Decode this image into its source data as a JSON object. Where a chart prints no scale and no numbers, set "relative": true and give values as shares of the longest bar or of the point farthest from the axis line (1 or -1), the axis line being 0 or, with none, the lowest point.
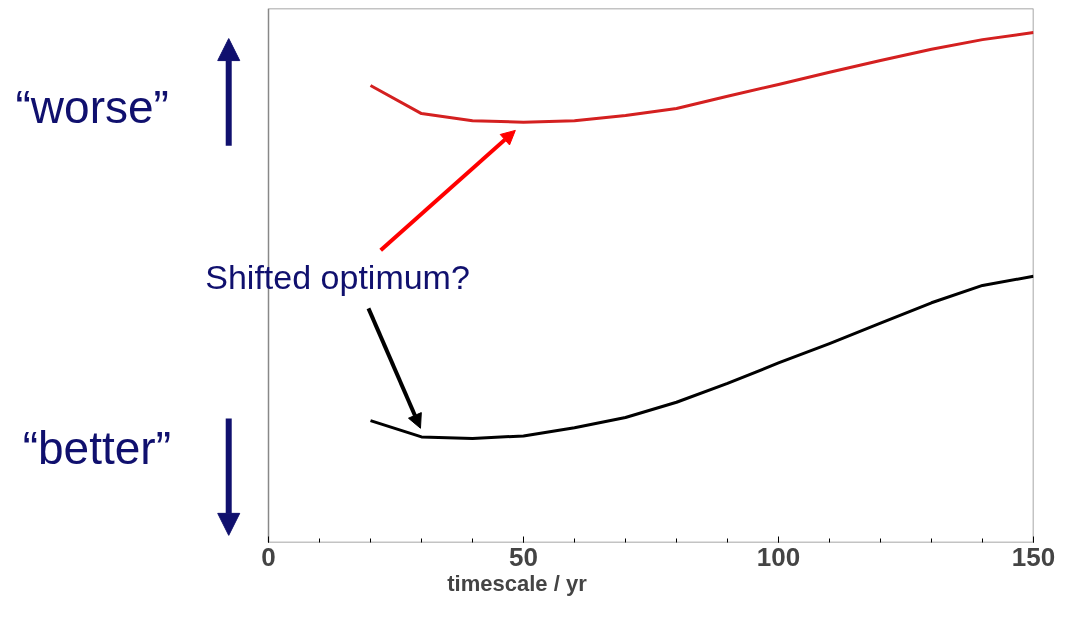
{
  "chart_data": {
    "type": "line",
    "relative": true,
    "xlabel": "timescale / yr",
    "xlim": [
      0,
      150
    ],
    "xticks": [
      0,
      50,
      100,
      150
    ],
    "tick_labels": "x",
    "grid": false,
    "x": [
      20,
      30,
      40,
      50,
      60,
      70,
      80,
      90,
      100,
      110,
      120,
      130,
      140,
      150
    ],
    "series": [
      {
        "color": "#d42020",
        "values": [
          0.896,
          0.841,
          0.827,
          0.824,
          0.827,
          0.837,
          0.851,
          0.875,
          0.898,
          0.922,
          0.945,
          0.967,
          0.986,
          1.0
        ]
      },
      {
        "color": "#000000",
        "values": [
          0.239,
          0.207,
          0.204,
          0.209,
          0.225,
          0.245,
          0.275,
          0.312,
          0.352,
          0.39,
          0.43,
          0.47,
          0.504,
          0.522
        ]
      }
    ],
    "annotations": [
      "“worse”",
      "“better”",
      "Shifted optimum?"
    ]
  }
}
